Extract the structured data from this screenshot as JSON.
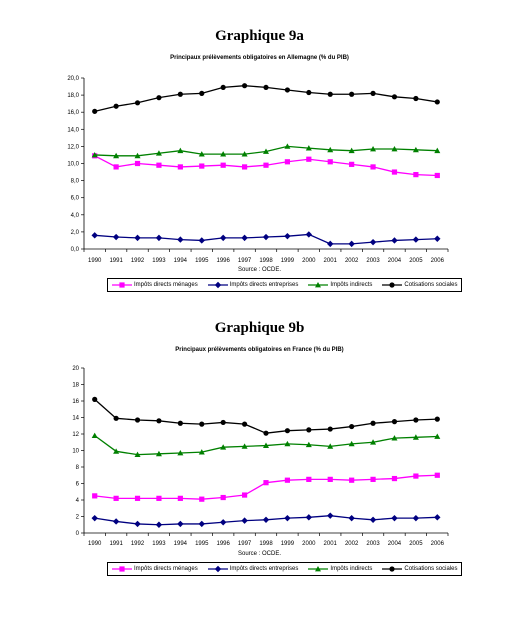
{
  "charts": [
    {
      "heading": "Graphique 9a",
      "subtitle": "Principaux prélèvements obligatoires en Allemagne (% du PIB)",
      "source": "Source : OCDE."
    },
    {
      "heading": "Graphique 9b",
      "subtitle": "Principaux prélèvements obligatoires en France (% du PIB)",
      "source": "Source : OCDE."
    }
  ],
  "chart_data": [
    {
      "type": "line",
      "title": "Principaux prélèvements obligatoires en Allemagne (% du PIB)",
      "x": [
        "1990",
        "1991",
        "1992",
        "1993",
        "1994",
        "1995",
        "1996",
        "1997",
        "1998",
        "1999",
        "2000",
        "2001",
        "2002",
        "2003",
        "2004",
        "2005",
        "2006"
      ],
      "ylim": [
        0,
        20
      ],
      "yticks": [
        "0,0",
        "2,0",
        "4,0",
        "6,0",
        "8,0",
        "10,0",
        "12,0",
        "14,0",
        "16,0",
        "18,0",
        "20,0"
      ],
      "grid": false,
      "legend": "bottom",
      "series": [
        {
          "name": "Impôts directs ménages",
          "color": "#ff00ff",
          "marker": "square",
          "values": [
            10.9,
            9.6,
            10.0,
            9.8,
            9.6,
            9.7,
            9.8,
            9.6,
            9.8,
            10.2,
            10.5,
            10.2,
            9.9,
            9.6,
            9.0,
            8.7,
            8.6
          ]
        },
        {
          "name": "Impôts directs entreprises",
          "color": "#000080",
          "marker": "diamond",
          "values": [
            1.6,
            1.4,
            1.3,
            1.3,
            1.1,
            1.0,
            1.3,
            1.3,
            1.4,
            1.5,
            1.7,
            0.6,
            0.6,
            0.8,
            1.0,
            1.1,
            1.2
          ]
        },
        {
          "name": "Impôts indirects",
          "color": "#008000",
          "marker": "triangle",
          "values": [
            11.0,
            10.9,
            10.9,
            11.2,
            11.5,
            11.1,
            11.1,
            11.1,
            11.4,
            12.0,
            11.8,
            11.6,
            11.5,
            11.7,
            11.7,
            11.6,
            11.5
          ]
        },
        {
          "name": "Cotisations sociales",
          "color": "#000000",
          "marker": "circle",
          "values": [
            16.1,
            16.7,
            17.1,
            17.7,
            18.1,
            18.2,
            18.9,
            19.1,
            18.9,
            18.6,
            18.3,
            18.1,
            18.1,
            18.2,
            17.8,
            17.6,
            17.2
          ]
        }
      ]
    },
    {
      "type": "line",
      "title": "Principaux prélèvements obligatoires en France (% du PIB)",
      "x": [
        "1990",
        "1991",
        "1992",
        "1993",
        "1994",
        "1995",
        "1996",
        "1997",
        "1998",
        "1999",
        "2000",
        "2001",
        "2002",
        "2003",
        "2004",
        "2005",
        "2006"
      ],
      "ylim": [
        0,
        20
      ],
      "yticks": [
        "0",
        "2",
        "4",
        "6",
        "8",
        "10",
        "12",
        "14",
        "16",
        "18",
        "20"
      ],
      "grid": false,
      "legend": "bottom",
      "series": [
        {
          "name": "Impôts directs ménages",
          "color": "#ff00ff",
          "marker": "square",
          "values": [
            4.5,
            4.2,
            4.2,
            4.2,
            4.2,
            4.1,
            4.3,
            4.6,
            6.1,
            6.4,
            6.5,
            6.5,
            6.4,
            6.5,
            6.6,
            6.9,
            7.0
          ]
        },
        {
          "name": "Impôts directs entreprises",
          "color": "#000080",
          "marker": "diamond",
          "values": [
            1.8,
            1.4,
            1.1,
            1.0,
            1.1,
            1.1,
            1.3,
            1.5,
            1.6,
            1.8,
            1.9,
            2.1,
            1.8,
            1.6,
            1.8,
            1.8,
            1.9
          ]
        },
        {
          "name": "Impôts indirects",
          "color": "#008000",
          "marker": "triangle",
          "values": [
            11.8,
            9.9,
            9.5,
            9.6,
            9.7,
            9.8,
            10.4,
            10.5,
            10.6,
            10.8,
            10.7,
            10.5,
            10.8,
            11.0,
            11.5,
            11.6,
            11.7
          ]
        },
        {
          "name": "Cotisations sociales",
          "color": "#000000",
          "marker": "circle",
          "values": [
            16.2,
            13.9,
            13.7,
            13.6,
            13.3,
            13.2,
            13.4,
            13.2,
            12.1,
            12.4,
            12.5,
            12.6,
            12.9,
            13.3,
            13.5,
            13.7,
            13.8
          ]
        }
      ]
    }
  ]
}
